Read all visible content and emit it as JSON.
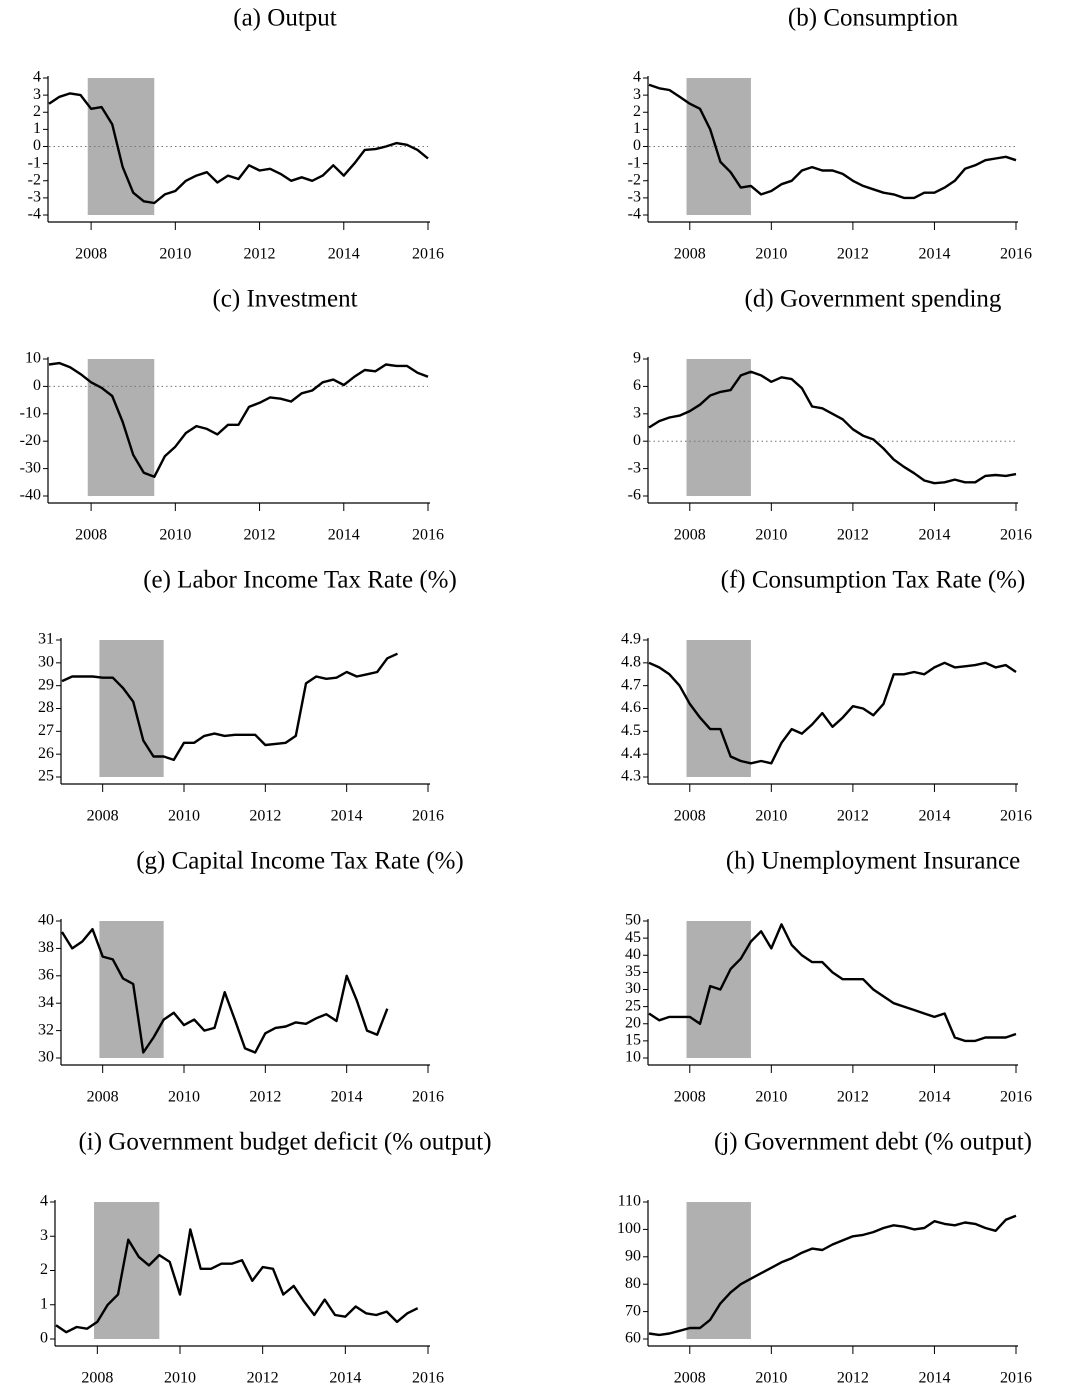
{
  "chart_data": [
    {
      "type": "line",
      "title": "(a) Output",
      "xlim": [
        2007,
        2016
      ],
      "xticks": [
        2008,
        2010,
        2012,
        2014,
        2016
      ],
      "ylim": [
        -4,
        4
      ],
      "yticks": [
        -4,
        -3,
        -2,
        -1,
        0,
        1,
        2,
        3,
        4
      ],
      "shade": [
        2007.92,
        2009.5
      ],
      "reference_line": 0,
      "color": "#000000",
      "x": [
        2007,
        2007.25,
        2007.5,
        2007.75,
        2008,
        2008.25,
        2008.5,
        2008.75,
        2009,
        2009.25,
        2009.5,
        2009.75,
        2010,
        2010.25,
        2010.5,
        2010.75,
        2011,
        2011.25,
        2011.5,
        2011.75,
        2012,
        2012.25,
        2012.5,
        2012.75,
        2013,
        2013.25,
        2013.5,
        2013.75,
        2014,
        2014.25,
        2014.5,
        2014.75,
        2015,
        2015.25,
        2015.5,
        2015.75,
        2016
      ],
      "values": [
        2.5,
        2.9,
        3.1,
        3.0,
        2.2,
        2.3,
        1.3,
        -1.2,
        -2.7,
        -3.2,
        -3.3,
        -2.8,
        -2.6,
        -2.0,
        -1.7,
        -1.5,
        -2.1,
        -1.7,
        -1.9,
        -1.1,
        -1.4,
        -1.3,
        -1.6,
        -2.0,
        -1.8,
        -2.0,
        -1.7,
        -1.1,
        -1.7,
        -1.0,
        -0.2,
        -0.15,
        0.0,
        0.2,
        0.1,
        -0.2,
        -0.7
      ]
    },
    {
      "type": "line",
      "title": "(b) Consumption",
      "xlim": [
        2007,
        2016
      ],
      "xticks": [
        2008,
        2010,
        2012,
        2014,
        2016
      ],
      "ylim": [
        -4,
        4
      ],
      "yticks": [
        -4,
        -3,
        -2,
        -1,
        0,
        1,
        2,
        3,
        4
      ],
      "shade": [
        2007.92,
        2009.5
      ],
      "reference_line": 0,
      "color": "#000000",
      "x": [
        2007,
        2007.25,
        2007.5,
        2007.75,
        2008,
        2008.25,
        2008.5,
        2008.75,
        2009,
        2009.25,
        2009.5,
        2009.75,
        2010,
        2010.25,
        2010.5,
        2010.75,
        2011,
        2011.25,
        2011.5,
        2011.75,
        2012,
        2012.25,
        2012.5,
        2012.75,
        2013,
        2013.25,
        2013.5,
        2013.75,
        2014,
        2014.25,
        2014.5,
        2014.75,
        2015,
        2015.25,
        2015.5,
        2015.75,
        2016
      ],
      "values": [
        3.6,
        3.4,
        3.3,
        2.9,
        2.5,
        2.2,
        1.0,
        -0.9,
        -1.5,
        -2.4,
        -2.3,
        -2.8,
        -2.6,
        -2.2,
        -2.0,
        -1.4,
        -1.2,
        -1.4,
        -1.4,
        -1.6,
        -2.0,
        -2.3,
        -2.5,
        -2.7,
        -2.8,
        -3.0,
        -3.0,
        -2.7,
        -2.7,
        -2.4,
        -2.0,
        -1.3,
        -1.1,
        -0.8,
        -0.7,
        -0.6,
        -0.8
      ]
    },
    {
      "type": "line",
      "title": "(c) Investment",
      "xlim": [
        2007,
        2016
      ],
      "xticks": [
        2008,
        2010,
        2012,
        2014,
        2016
      ],
      "ylim": [
        -40,
        10
      ],
      "yticks": [
        -40,
        -30,
        -20,
        -10,
        0,
        10
      ],
      "shade": [
        2007.92,
        2009.5
      ],
      "reference_line": 0,
      "color": "#000000",
      "x": [
        2007,
        2007.25,
        2007.5,
        2007.75,
        2008,
        2008.25,
        2008.5,
        2008.75,
        2009,
        2009.25,
        2009.5,
        2009.75,
        2010,
        2010.25,
        2010.5,
        2010.75,
        2011,
        2011.25,
        2011.5,
        2011.75,
        2012,
        2012.25,
        2012.5,
        2012.75,
        2013,
        2013.25,
        2013.5,
        2013.75,
        2014,
        2014.25,
        2014.5,
        2014.75,
        2015,
        2015.25,
        2015.5,
        2015.75,
        2016
      ],
      "values": [
        8,
        8.5,
        7,
        4.5,
        1.5,
        -0.5,
        -3.5,
        -13,
        -25,
        -31.5,
        -33,
        -25.5,
        -22,
        -17,
        -14.5,
        -15.5,
        -17.5,
        -14,
        -14,
        -7.5,
        -6,
        -4,
        -4.5,
        -5.5,
        -2.5,
        -1.5,
        1.5,
        2.5,
        0.5,
        3.5,
        6,
        5.5,
        8,
        7.5,
        7.5,
        5,
        3.5
      ]
    },
    {
      "type": "line",
      "title": "(d) Government spending",
      "xlim": [
        2007,
        2016
      ],
      "xticks": [
        2008,
        2010,
        2012,
        2014,
        2016
      ],
      "ylim": [
        -6,
        9
      ],
      "yticks": [
        -6,
        -3,
        0,
        3,
        6,
        9
      ],
      "shade": [
        2007.92,
        2009.5
      ],
      "reference_line": 0,
      "color": "#000000",
      "x": [
        2007,
        2007.25,
        2007.5,
        2007.75,
        2008,
        2008.25,
        2008.5,
        2008.75,
        2009,
        2009.25,
        2009.5,
        2009.75,
        2010,
        2010.25,
        2010.5,
        2010.75,
        2011,
        2011.25,
        2011.5,
        2011.75,
        2012,
        2012.25,
        2012.5,
        2012.75,
        2013,
        2013.25,
        2013.5,
        2013.75,
        2014,
        2014.25,
        2014.5,
        2014.75,
        2015,
        2015.25,
        2015.5,
        2015.75,
        2016
      ],
      "values": [
        1.5,
        2.2,
        2.6,
        2.8,
        3.3,
        4,
        5,
        5.4,
        5.6,
        7.2,
        7.6,
        7.2,
        6.5,
        7.0,
        6.8,
        5.8,
        3.8,
        3.6,
        3.0,
        2.4,
        1.3,
        0.6,
        0.2,
        -0.8,
        -2.0,
        -2.8,
        -3.5,
        -4.3,
        -4.6,
        -4.5,
        -4.2,
        -4.5,
        -4.5,
        -3.8,
        -3.7,
        -3.8,
        -3.6
      ]
    },
    {
      "type": "line",
      "title": "(e) Labor Income Tax Rate (%)",
      "xlim": [
        2007,
        2016
      ],
      "xticks": [
        2008,
        2010,
        2012,
        2014,
        2016
      ],
      "ylim": [
        25,
        31
      ],
      "yticks": [
        25,
        26,
        27,
        28,
        29,
        30,
        31
      ],
      "shade": [
        2007.92,
        2009.5
      ],
      "color": "#000000",
      "x": [
        2007,
        2007.25,
        2007.5,
        2007.75,
        2008,
        2008.25,
        2008.5,
        2008.75,
        2009,
        2009.25,
        2009.5,
        2009.75,
        2010,
        2010.25,
        2010.5,
        2010.75,
        2011,
        2011.25,
        2011.5,
        2011.75,
        2012,
        2012.25,
        2012.5,
        2012.75,
        2013,
        2013.25,
        2013.5,
        2013.75,
        2014,
        2014.25,
        2014.5,
        2014.75,
        2015,
        2015.25
      ],
      "values": [
        29.2,
        29.4,
        29.4,
        29.4,
        29.35,
        29.35,
        28.9,
        28.3,
        26.6,
        25.9,
        25.9,
        25.75,
        26.5,
        26.5,
        26.8,
        26.9,
        26.8,
        26.85,
        26.85,
        26.85,
        26.4,
        26.45,
        26.5,
        26.8,
        29.1,
        29.4,
        29.3,
        29.35,
        29.6,
        29.4,
        29.5,
        29.6,
        30.2,
        30.4
      ]
    },
    {
      "type": "line",
      "title": "(f) Consumption Tax Rate (%)",
      "xlim": [
        2007,
        2016
      ],
      "xticks": [
        2008,
        2010,
        2012,
        2014,
        2016
      ],
      "ylim": [
        4.3,
        4.9
      ],
      "yticks": [
        4.3,
        4.4,
        4.5,
        4.6,
        4.7,
        4.8,
        4.9
      ],
      "shade": [
        2007.92,
        2009.5
      ],
      "color": "#000000",
      "x": [
        2007,
        2007.25,
        2007.5,
        2007.75,
        2008,
        2008.25,
        2008.5,
        2008.75,
        2009,
        2009.25,
        2009.5,
        2009.75,
        2010,
        2010.25,
        2010.5,
        2010.75,
        2011,
        2011.25,
        2011.5,
        2011.75,
        2012,
        2012.25,
        2012.5,
        2012.75,
        2013,
        2013.25,
        2013.5,
        2013.75,
        2014,
        2014.25,
        2014.5,
        2014.75,
        2015,
        2015.25,
        2015.5,
        2015.75,
        2016
      ],
      "values": [
        4.8,
        4.78,
        4.75,
        4.7,
        4.62,
        4.56,
        4.51,
        4.51,
        4.39,
        4.37,
        4.36,
        4.37,
        4.36,
        4.45,
        4.51,
        4.49,
        4.53,
        4.58,
        4.52,
        4.56,
        4.61,
        4.6,
        4.57,
        4.62,
        4.75,
        4.75,
        4.76,
        4.75,
        4.78,
        4.8,
        4.78,
        4.785,
        4.79,
        4.8,
        4.78,
        4.79,
        4.76
      ]
    },
    {
      "type": "line",
      "title": "(g) Capital Income Tax Rate (%)",
      "xlim": [
        2007,
        2016
      ],
      "xticks": [
        2008,
        2010,
        2012,
        2014,
        2016
      ],
      "ylim": [
        30,
        40
      ],
      "yticks": [
        30,
        32,
        34,
        36,
        38,
        40
      ],
      "shade": [
        2007.92,
        2009.5
      ],
      "color": "#000000",
      "x": [
        2007,
        2007.25,
        2007.5,
        2007.75,
        2008,
        2008.25,
        2008.5,
        2008.75,
        2009,
        2009.25,
        2009.5,
        2009.75,
        2010,
        2010.25,
        2010.5,
        2010.75,
        2011,
        2011.25,
        2011.5,
        2011.75,
        2012,
        2012.25,
        2012.5,
        2012.75,
        2013,
        2013.25,
        2013.5,
        2013.75,
        2014,
        2014.25,
        2014.5,
        2014.75,
        2015
      ],
      "values": [
        39.2,
        38.0,
        38.5,
        39.4,
        37.4,
        37.2,
        35.8,
        35.4,
        30.4,
        31.5,
        32.8,
        33.3,
        32.4,
        32.8,
        32.0,
        32.2,
        34.8,
        32.8,
        30.7,
        30.4,
        31.8,
        32.2,
        32.3,
        32.6,
        32.5,
        32.9,
        33.2,
        32.7,
        36.0,
        34.2,
        32.0,
        31.7,
        33.6
      ]
    },
    {
      "type": "line",
      "title": "(h) Unemployment Insurance",
      "xlim": [
        2007,
        2016
      ],
      "xticks": [
        2008,
        2010,
        2012,
        2014,
        2016
      ],
      "ylim": [
        10,
        50
      ],
      "yticks": [
        10,
        15,
        20,
        25,
        30,
        35,
        40,
        45,
        50
      ],
      "shade": [
        2007.92,
        2009.5
      ],
      "color": "#000000",
      "x": [
        2007,
        2007.25,
        2007.5,
        2007.75,
        2008,
        2008.25,
        2008.5,
        2008.75,
        2009,
        2009.25,
        2009.5,
        2009.75,
        2010,
        2010.25,
        2010.5,
        2010.75,
        2011,
        2011.25,
        2011.5,
        2011.75,
        2012,
        2012.25,
        2012.5,
        2012.75,
        2013,
        2013.25,
        2013.5,
        2013.75,
        2014,
        2014.25,
        2014.5,
        2014.75,
        2015,
        2015.25,
        2015.5,
        2015.75,
        2016
      ],
      "values": [
        23,
        21,
        22,
        22,
        22,
        20,
        31,
        30,
        36,
        39,
        44,
        47,
        42,
        49,
        43,
        40,
        38,
        38,
        35,
        33,
        33,
        33,
        30,
        28,
        26,
        25,
        24,
        23,
        22,
        23,
        16,
        15,
        15,
        16,
        16,
        16,
        17
      ]
    },
    {
      "type": "line",
      "title": "(i) Government budget deficit (% output)",
      "xlim": [
        2007,
        2016
      ],
      "xticks": [
        2008,
        2010,
        2012,
        2014,
        2016
      ],
      "ylim": [
        0,
        4
      ],
      "yticks": [
        0,
        1,
        2,
        3,
        4
      ],
      "shade": [
        2007.92,
        2009.5
      ],
      "color": "#000000",
      "x": [
        2007,
        2007.25,
        2007.5,
        2007.75,
        2008,
        2008.25,
        2008.5,
        2008.75,
        2009,
        2009.25,
        2009.5,
        2009.75,
        2010,
        2010.25,
        2010.5,
        2010.75,
        2011,
        2011.25,
        2011.5,
        2011.75,
        2012,
        2012.25,
        2012.5,
        2012.75,
        2013,
        2013.25,
        2013.5,
        2013.75,
        2014,
        2014.25,
        2014.5,
        2014.75,
        2015,
        2015.25,
        2015.5,
        2015.75
      ],
      "values": [
        0.4,
        0.2,
        0.35,
        0.3,
        0.5,
        1.0,
        1.3,
        2.9,
        2.4,
        2.15,
        2.45,
        2.25,
        1.3,
        3.2,
        2.05,
        2.05,
        2.2,
        2.2,
        2.3,
        1.7,
        2.1,
        2.05,
        1.3,
        1.55,
        1.1,
        0.7,
        1.15,
        0.7,
        0.65,
        0.95,
        0.75,
        0.7,
        0.8,
        0.5,
        0.75,
        0.9
      ]
    },
    {
      "type": "line",
      "title": "(j) Government debt (% output)",
      "xlim": [
        2007,
        2016
      ],
      "xticks": [
        2008,
        2010,
        2012,
        2014,
        2016
      ],
      "ylim": [
        60,
        110
      ],
      "yticks": [
        60,
        70,
        80,
        90,
        100,
        110
      ],
      "shade": [
        2007.92,
        2009.5
      ],
      "color": "#000000",
      "x": [
        2007,
        2007.25,
        2007.5,
        2007.75,
        2008,
        2008.25,
        2008.5,
        2008.75,
        2009,
        2009.25,
        2009.5,
        2009.75,
        2010,
        2010.25,
        2010.5,
        2010.75,
        2011,
        2011.25,
        2011.5,
        2011.75,
        2012,
        2012.25,
        2012.5,
        2012.75,
        2013,
        2013.25,
        2013.5,
        2013.75,
        2014,
        2014.25,
        2014.5,
        2014.75,
        2015,
        2015.25,
        2015.5,
        2015.75,
        2016
      ],
      "values": [
        62,
        61.5,
        62,
        63,
        64,
        64,
        67,
        73,
        77,
        80,
        82,
        84,
        86,
        88,
        89.5,
        91.5,
        93,
        92.5,
        94.5,
        96,
        97.5,
        98,
        99,
        100.5,
        101.5,
        101,
        100,
        100.5,
        103,
        102,
        101.5,
        102.5,
        102,
        100.5,
        99.5,
        103.5,
        105
      ]
    }
  ]
}
